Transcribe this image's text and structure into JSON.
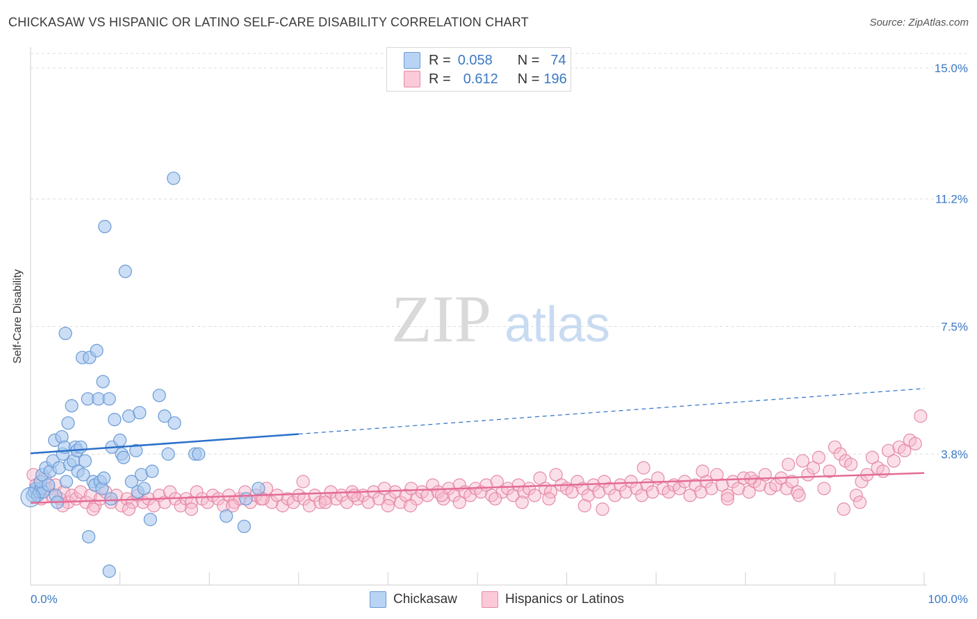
{
  "header": {
    "title": "CHICKASAW VS HISPANIC OR LATINO SELF-CARE DISABILITY CORRELATION CHART",
    "source": "Source: ZipAtlas.com"
  },
  "watermark": {
    "zip": "ZIP",
    "atlas": "atlas"
  },
  "legend": {
    "rows": [
      {
        "r_label": "R =",
        "r_value": "0.058",
        "n_label": "N =",
        "n_value": "74"
      },
      {
        "r_label": "R =",
        "r_value": "0.612",
        "n_label": "N =",
        "n_value": "196"
      }
    ]
  },
  "bottom_legend": {
    "series1": "Chickasaw",
    "series2": "Hispanics or Latinos"
  },
  "colors": {
    "blue_fill": "#a9c8ef",
    "blue_stroke": "#6a9ad6",
    "blue_line": "#2a6fc9",
    "pink_fill": "#f6b9cb",
    "pink_stroke": "#e58aa6",
    "pink_line": "#e46b95",
    "tick_label": "#3b78c3",
    "grid": "#dcdcdc"
  },
  "chart_data": {
    "type": "scatter",
    "title": "CHICKASAW VS HISPANIC OR LATINO SELF-CARE DISABILITY CORRELATION CHART",
    "xlabel": "",
    "ylabel": "Self-Care Disability",
    "xlim": [
      0,
      100
    ],
    "ylim": [
      0,
      15.5
    ],
    "x_tick_labels": [
      "0.0%",
      "100.0%"
    ],
    "y_ticks": [
      3.8,
      7.5,
      11.2,
      15.0
    ],
    "y_tick_labels": [
      "3.8%",
      "7.5%",
      "11.2%",
      "15.0%"
    ],
    "grid": "horizontal dashed",
    "legend_position": "top-center",
    "series": [
      {
        "name": "Chickasaw",
        "R": 0.058,
        "N": 74,
        "trend": {
          "x0": 0,
          "y0": 3.82,
          "x1": 30,
          "y1": 4.38,
          "dashed_to_x": 100,
          "dashed_to_y": 5.7
        },
        "points": [
          [
            0.2,
            2.6
          ],
          [
            0.4,
            2.7
          ],
          [
            0.6,
            2.8
          ],
          [
            0.8,
            2.6
          ],
          [
            1.0,
            2.7
          ],
          [
            1.2,
            2.8
          ],
          [
            1.4,
            2.7
          ],
          [
            1.1,
            3.0
          ],
          [
            1.3,
            3.2
          ],
          [
            1.7,
            3.4
          ],
          [
            2.0,
            2.9
          ],
          [
            2.2,
            3.3
          ],
          [
            2.5,
            3.6
          ],
          [
            2.8,
            2.6
          ],
          [
            3.0,
            2.4
          ],
          [
            2.7,
            4.2
          ],
          [
            3.2,
            3.4
          ],
          [
            3.5,
            4.3
          ],
          [
            3.6,
            3.8
          ],
          [
            3.8,
            4.0
          ],
          [
            4.0,
            3.0
          ],
          [
            4.2,
            4.7
          ],
          [
            4.4,
            3.5
          ],
          [
            4.6,
            5.2
          ],
          [
            4.8,
            3.6
          ],
          [
            5.0,
            4.0
          ],
          [
            5.2,
            3.9
          ],
          [
            5.3,
            3.3
          ],
          [
            5.6,
            4.0
          ],
          [
            5.9,
            3.2
          ],
          [
            6.1,
            3.6
          ],
          [
            3.9,
            7.3
          ],
          [
            5.8,
            6.6
          ],
          [
            6.6,
            6.6
          ],
          [
            7.4,
            6.8
          ],
          [
            6.4,
            5.4
          ],
          [
            7.6,
            5.4
          ],
          [
            8.1,
            5.9
          ],
          [
            8.8,
            5.4
          ],
          [
            8.3,
            10.4
          ],
          [
            9.4,
            4.8
          ],
          [
            9.1,
            4.0
          ],
          [
            10.0,
            4.2
          ],
          [
            10.2,
            3.8
          ],
          [
            10.4,
            3.7
          ],
          [
            11.0,
            4.9
          ],
          [
            11.8,
            3.9
          ],
          [
            12.4,
            3.2
          ],
          [
            12.2,
            5.0
          ],
          [
            14.4,
            5.5
          ],
          [
            15.0,
            4.9
          ],
          [
            15.4,
            3.8
          ],
          [
            16.1,
            4.7
          ],
          [
            16.0,
            11.8
          ],
          [
            18.4,
            3.8
          ],
          [
            18.8,
            3.8
          ],
          [
            7.0,
            3.0
          ],
          [
            7.2,
            2.9
          ],
          [
            7.8,
            3.0
          ],
          [
            8.0,
            2.8
          ],
          [
            9.0,
            2.5
          ],
          [
            11.3,
            3.0
          ],
          [
            12.0,
            2.7
          ],
          [
            12.7,
            2.8
          ],
          [
            13.4,
            1.9
          ],
          [
            13.6,
            3.3
          ],
          [
            8.2,
            3.1
          ],
          [
            10.6,
            9.1
          ],
          [
            6.5,
            1.4
          ],
          [
            8.8,
            0.4
          ],
          [
            21.9,
            2.0
          ],
          [
            23.9,
            1.7
          ],
          [
            25.5,
            2.8
          ],
          [
            24.1,
            2.5
          ]
        ]
      },
      {
        "name": "Hispanics or Latinos",
        "R": 0.612,
        "N": 196,
        "trend": {
          "x0": 0,
          "y0": 2.38,
          "x1": 100,
          "y1": 3.25
        },
        "points": [
          [
            0.3,
            3.2
          ],
          [
            0.6,
            2.9
          ],
          [
            0.9,
            2.7
          ],
          [
            1.2,
            2.5
          ],
          [
            1.6,
            3.1
          ],
          [
            2.0,
            2.8
          ],
          [
            2.4,
            2.6
          ],
          [
            2.8,
            2.9
          ],
          [
            3.3,
            2.5
          ],
          [
            3.7,
            2.7
          ],
          [
            4.2,
            2.4
          ],
          [
            4.6,
            2.6
          ],
          [
            5.1,
            2.5
          ],
          [
            5.6,
            2.7
          ],
          [
            6.2,
            2.4
          ],
          [
            6.7,
            2.6
          ],
          [
            7.2,
            2.3
          ],
          [
            7.8,
            2.5
          ],
          [
            8.4,
            2.7
          ],
          [
            9.0,
            2.4
          ],
          [
            9.6,
            2.6
          ],
          [
            10.2,
            2.3
          ],
          [
            10.8,
            2.5
          ],
          [
            11.4,
            2.4
          ],
          [
            12.0,
            2.6
          ],
          [
            12.6,
            2.4
          ],
          [
            13.2,
            2.5
          ],
          [
            13.8,
            2.3
          ],
          [
            14.4,
            2.6
          ],
          [
            15.0,
            2.4
          ],
          [
            15.6,
            2.7
          ],
          [
            16.2,
            2.5
          ],
          [
            16.8,
            2.3
          ],
          [
            17.4,
            2.5
          ],
          [
            18.0,
            2.4
          ],
          [
            18.6,
            2.7
          ],
          [
            19.2,
            2.5
          ],
          [
            19.8,
            2.4
          ],
          [
            20.4,
            2.6
          ],
          [
            21.0,
            2.5
          ],
          [
            21.6,
            2.3
          ],
          [
            22.2,
            2.6
          ],
          [
            22.8,
            2.4
          ],
          [
            23.4,
            2.5
          ],
          [
            24.0,
            2.7
          ],
          [
            24.6,
            2.4
          ],
          [
            25.2,
            2.6
          ],
          [
            25.8,
            2.5
          ],
          [
            26.4,
            2.8
          ],
          [
            27.0,
            2.4
          ],
          [
            27.6,
            2.6
          ],
          [
            28.2,
            2.3
          ],
          [
            28.8,
            2.5
          ],
          [
            29.4,
            2.4
          ],
          [
            30.0,
            2.6
          ],
          [
            30.6,
            2.5
          ],
          [
            31.2,
            2.3
          ],
          [
            31.8,
            2.6
          ],
          [
            32.4,
            2.4
          ],
          [
            33.0,
            2.5
          ],
          [
            33.6,
            2.7
          ],
          [
            34.2,
            2.5
          ],
          [
            34.8,
            2.6
          ],
          [
            35.4,
            2.4
          ],
          [
            36.0,
            2.7
          ],
          [
            36.6,
            2.5
          ],
          [
            37.2,
            2.6
          ],
          [
            37.8,
            2.4
          ],
          [
            38.4,
            2.7
          ],
          [
            39.0,
            2.5
          ],
          [
            39.6,
            2.8
          ],
          [
            40.2,
            2.5
          ],
          [
            40.8,
            2.7
          ],
          [
            41.4,
            2.4
          ],
          [
            42.0,
            2.6
          ],
          [
            42.6,
            2.8
          ],
          [
            43.2,
            2.5
          ],
          [
            43.8,
            2.7
          ],
          [
            44.4,
            2.6
          ],
          [
            45.0,
            2.9
          ],
          [
            45.6,
            2.7
          ],
          [
            46.2,
            2.5
          ],
          [
            46.8,
            2.8
          ],
          [
            47.4,
            2.6
          ],
          [
            48.0,
            2.9
          ],
          [
            48.6,
            2.7
          ],
          [
            49.2,
            2.6
          ],
          [
            49.8,
            2.8
          ],
          [
            50.4,
            2.7
          ],
          [
            51.0,
            2.9
          ],
          [
            51.6,
            2.6
          ],
          [
            52.2,
            3.0
          ],
          [
            52.8,
            2.7
          ],
          [
            53.4,
            2.8
          ],
          [
            54.0,
            2.6
          ],
          [
            54.6,
            2.9
          ],
          [
            55.2,
            2.7
          ],
          [
            55.8,
            2.8
          ],
          [
            56.4,
            2.6
          ],
          [
            57.0,
            3.1
          ],
          [
            57.6,
            2.8
          ],
          [
            58.2,
            2.7
          ],
          [
            58.8,
            3.2
          ],
          [
            59.4,
            2.9
          ],
          [
            60.0,
            2.8
          ],
          [
            60.6,
            2.7
          ],
          [
            61.2,
            3.0
          ],
          [
            61.8,
            2.8
          ],
          [
            62.4,
            2.6
          ],
          [
            63.0,
            2.9
          ],
          [
            63.6,
            2.7
          ],
          [
            64.2,
            3.0
          ],
          [
            64.8,
            2.8
          ],
          [
            65.4,
            2.6
          ],
          [
            66.0,
            2.9
          ],
          [
            66.6,
            2.7
          ],
          [
            67.2,
            3.0
          ],
          [
            67.8,
            2.8
          ],
          [
            68.4,
            2.6
          ],
          [
            69.0,
            2.9
          ],
          [
            69.6,
            2.7
          ],
          [
            70.2,
            3.1
          ],
          [
            70.8,
            2.8
          ],
          [
            71.4,
            2.7
          ],
          [
            72.0,
            2.9
          ],
          [
            72.6,
            2.8
          ],
          [
            73.2,
            3.0
          ],
          [
            73.8,
            2.6
          ],
          [
            74.4,
            2.9
          ],
          [
            75.0,
            2.7
          ],
          [
            75.6,
            3.0
          ],
          [
            76.2,
            2.8
          ],
          [
            76.8,
            3.2
          ],
          [
            77.4,
            2.9
          ],
          [
            78.0,
            2.6
          ],
          [
            78.6,
            3.0
          ],
          [
            79.2,
            2.8
          ],
          [
            79.8,
            3.1
          ],
          [
            80.4,
            2.7
          ],
          [
            81.0,
            3.0
          ],
          [
            81.6,
            2.9
          ],
          [
            82.2,
            3.2
          ],
          [
            82.8,
            2.8
          ],
          [
            83.4,
            2.9
          ],
          [
            84.0,
            3.1
          ],
          [
            84.6,
            2.8
          ],
          [
            85.2,
            3.0
          ],
          [
            85.8,
            2.7
          ],
          [
            86.4,
            3.6
          ],
          [
            87.0,
            3.2
          ],
          [
            87.6,
            3.4
          ],
          [
            88.2,
            3.7
          ],
          [
            88.8,
            2.8
          ],
          [
            89.4,
            3.3
          ],
          [
            90.0,
            4.0
          ],
          [
            90.6,
            3.8
          ],
          [
            91.2,
            3.6
          ],
          [
            91.8,
            3.5
          ],
          [
            92.4,
            2.6
          ],
          [
            93.0,
            3.0
          ],
          [
            93.6,
            3.2
          ],
          [
            94.2,
            3.7
          ],
          [
            94.8,
            3.4
          ],
          [
            95.4,
            3.3
          ],
          [
            96.0,
            3.9
          ],
          [
            96.6,
            3.6
          ],
          [
            97.2,
            4.0
          ],
          [
            97.8,
            3.9
          ],
          [
            98.4,
            4.2
          ],
          [
            99.0,
            4.1
          ],
          [
            99.6,
            4.9
          ],
          [
            91.0,
            2.2
          ],
          [
            62.0,
            2.3
          ],
          [
            55.0,
            2.4
          ],
          [
            48.0,
            2.4
          ],
          [
            30.5,
            3.0
          ],
          [
            36.2,
            2.6
          ],
          [
            68.6,
            3.4
          ],
          [
            75.2,
            3.3
          ],
          [
            80.6,
            3.1
          ],
          [
            84.8,
            3.5
          ],
          [
            92.8,
            2.4
          ],
          [
            64.0,
            2.2
          ],
          [
            18.0,
            2.2
          ],
          [
            11.0,
            2.2
          ],
          [
            22.6,
            2.3
          ],
          [
            42.5,
            2.3
          ],
          [
            7.0,
            2.2
          ],
          [
            3.6,
            2.3
          ],
          [
            26.0,
            2.5
          ],
          [
            33.0,
            2.4
          ],
          [
            40.0,
            2.3
          ],
          [
            46.0,
            2.6
          ],
          [
            52.0,
            2.5
          ],
          [
            58.0,
            2.5
          ],
          [
            78.0,
            2.5
          ],
          [
            86.0,
            2.6
          ]
        ]
      }
    ]
  }
}
